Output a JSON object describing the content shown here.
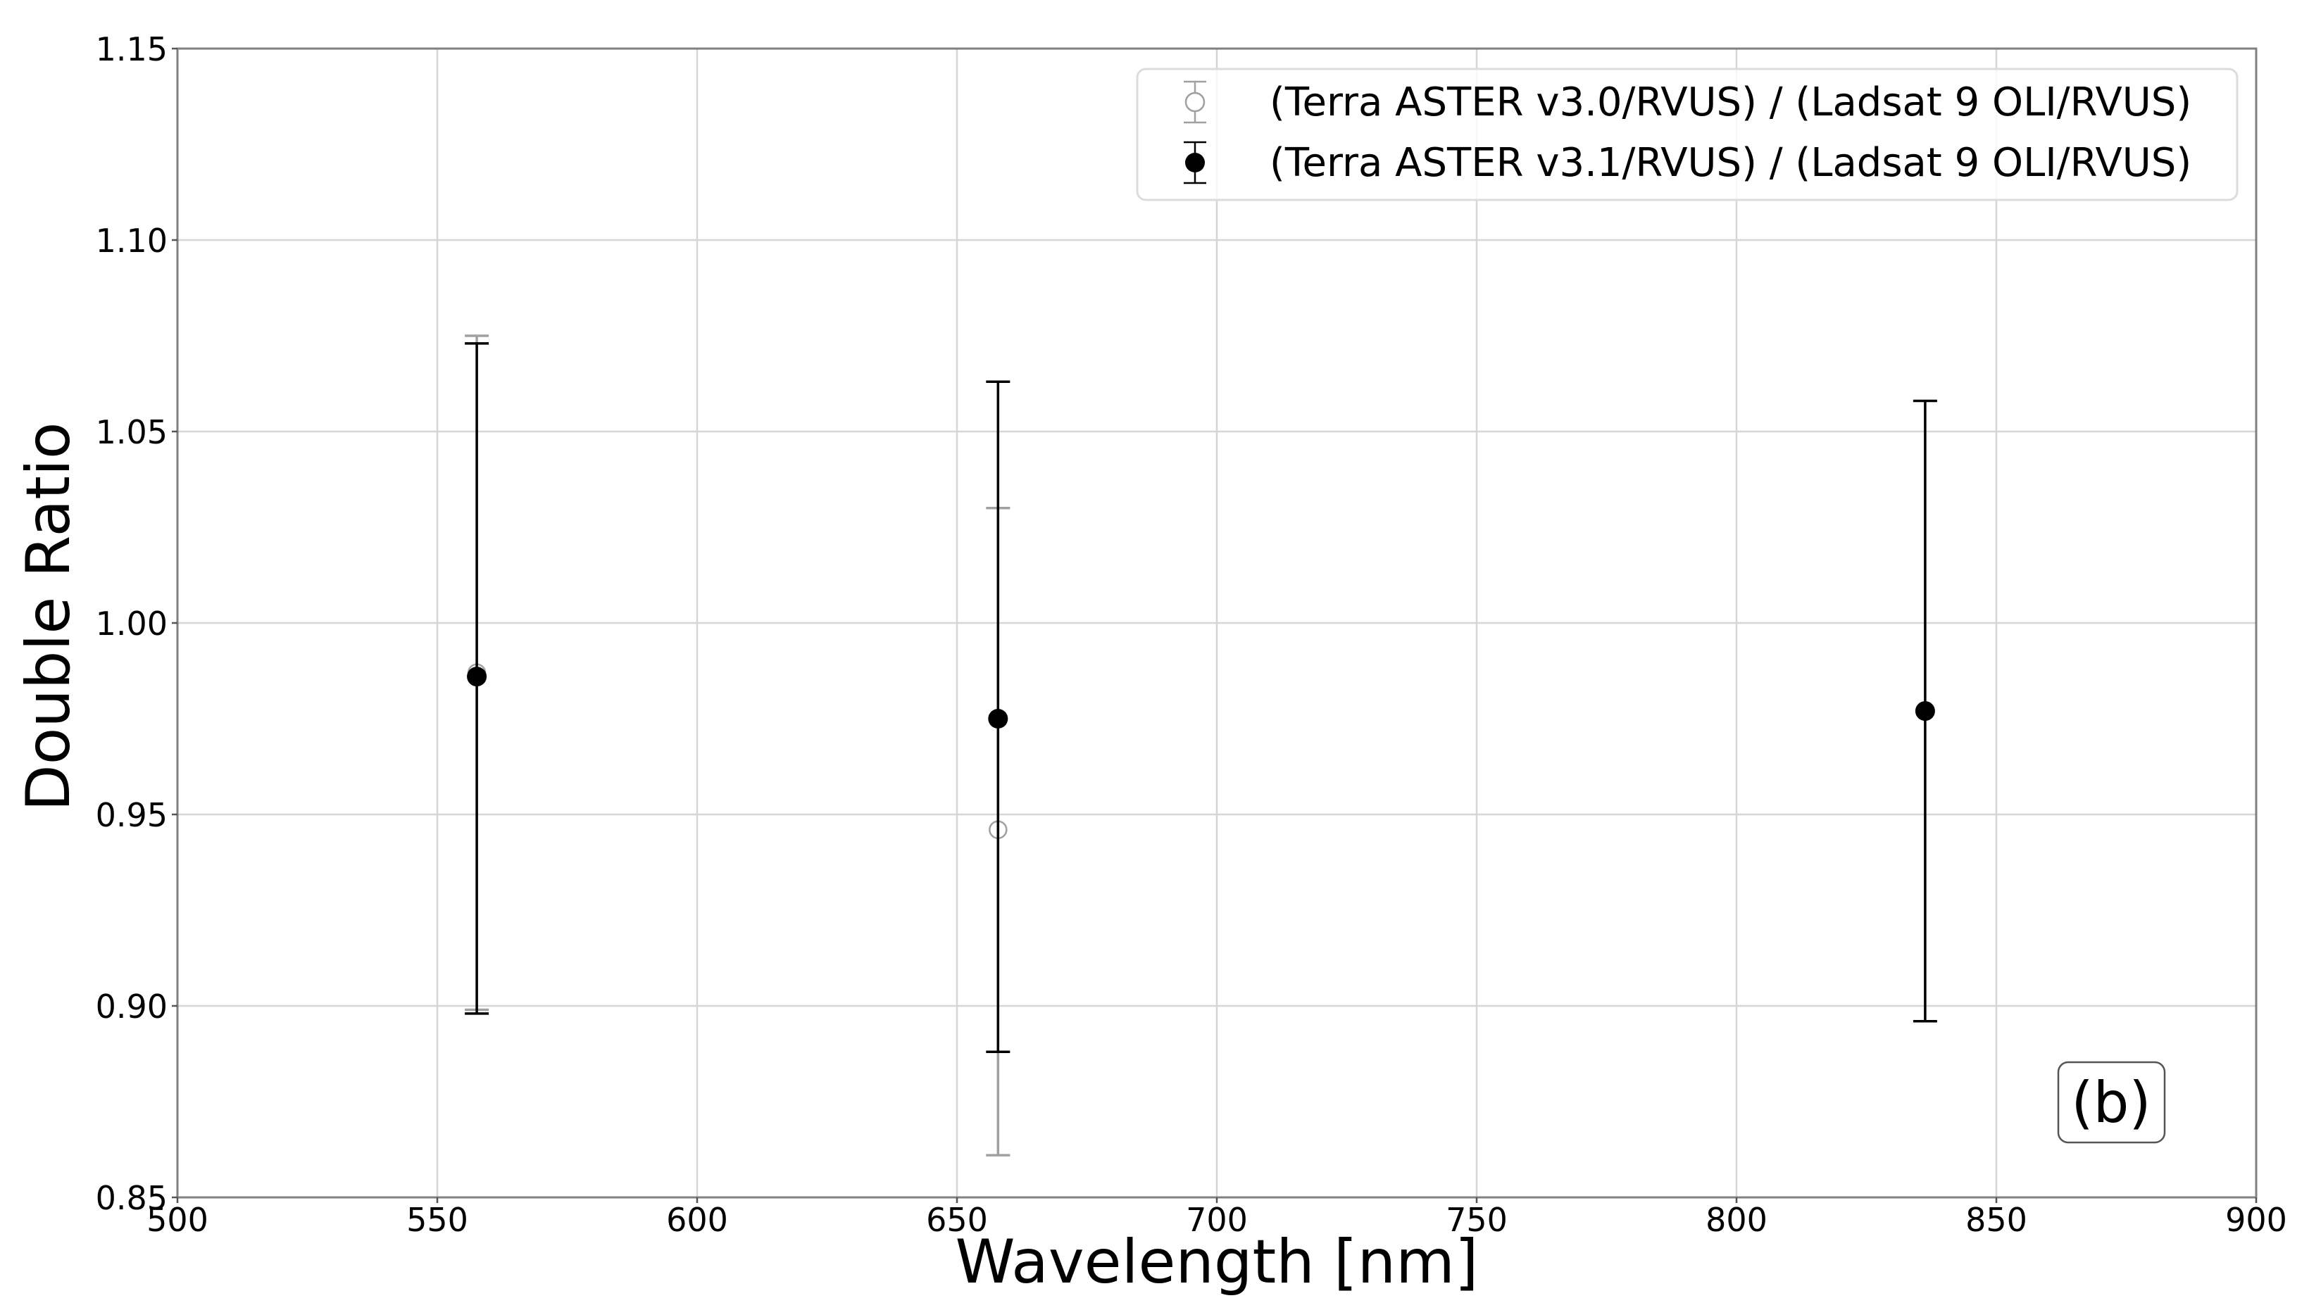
{
  "chart_data": {
    "type": "scatter",
    "subtype": "errorbar",
    "title": "",
    "xlabel": "Wavelength [nm]",
    "ylabel": "Double Ratio",
    "xlim": [
      500,
      900
    ],
    "ylim": [
      0.85,
      1.15
    ],
    "xticks": [
      500,
      550,
      600,
      650,
      700,
      750,
      800,
      850,
      900
    ],
    "xtick_labels": [
      "500",
      "550",
      "600",
      "650",
      "700",
      "750",
      "800",
      "850",
      "900"
    ],
    "yticks": [
      0.85,
      0.9,
      0.95,
      1.0,
      1.05,
      1.1,
      1.15
    ],
    "ytick_labels": [
      "0.85",
      "0.90",
      "0.95",
      "1.00",
      "1.05",
      "1.10",
      "1.15"
    ],
    "grid": true,
    "legend_position": "upper right",
    "annotation": "(b)",
    "series": [
      {
        "name": "(Terra ASTER v3.0/RVUS) / (Ladsat 9 OLI/RVUS)",
        "marker": "open-circle",
        "color": "#a0a0a0",
        "points": [
          {
            "x": 557.6,
            "y": 0.987,
            "ylow": 0.899,
            "yhigh": 1.075
          },
          {
            "x": 657.9,
            "y": 0.946,
            "ylow": 0.861,
            "yhigh": 1.03
          }
        ]
      },
      {
        "name": "(Terra ASTER v3.1/RVUS) / (Ladsat 9 OLI/RVUS)",
        "marker": "filled-circle",
        "color": "#000000",
        "points": [
          {
            "x": 557.6,
            "y": 0.986,
            "ylow": 0.898,
            "yhigh": 1.073
          },
          {
            "x": 657.9,
            "y": 0.975,
            "ylow": 0.888,
            "yhigh": 1.063
          },
          {
            "x": 836.3,
            "y": 0.977,
            "ylow": 0.896,
            "yhigh": 1.058
          }
        ]
      }
    ]
  },
  "legend": {
    "items": [
      {
        "label": "(Terra ASTER v3.0/RVUS) / (Ladsat 9 OLI/RVUS)"
      },
      {
        "label": "(Terra ASTER v3.1/RVUS) / (Ladsat 9 OLI/RVUS)"
      }
    ]
  },
  "annotation": {
    "label": "(b)"
  },
  "axes": {
    "xlabel": "Wavelength [nm]",
    "ylabel": "Double Ratio"
  }
}
